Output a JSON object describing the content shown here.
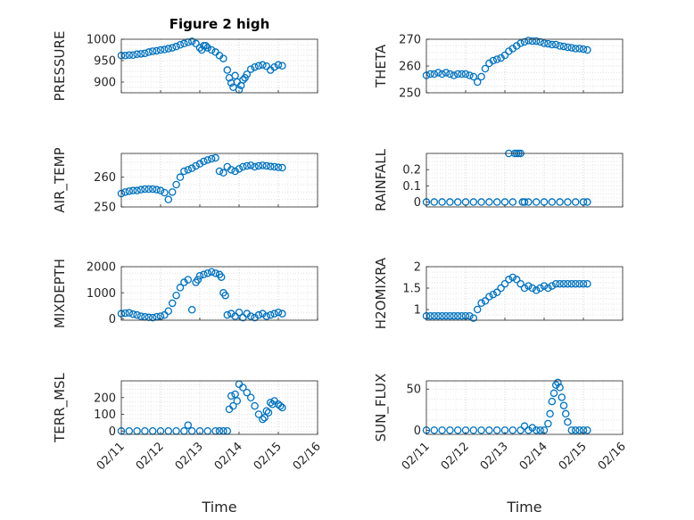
{
  "figure": {
    "title": "Figure 2 high"
  },
  "chart_data": [
    {
      "type": "scatter",
      "ylabel": "PRESSURE",
      "ylim": [
        875,
        1000
      ],
      "yticks": [
        "1000",
        "950",
        "900"
      ],
      "ytick_values": [
        1000,
        950,
        900
      ],
      "xlim": [
        0,
        5
      ],
      "grid": true,
      "x": [
        0.0,
        0.1,
        0.2,
        0.3,
        0.4,
        0.5,
        0.6,
        0.7,
        0.8,
        0.9,
        1.0,
        1.1,
        1.2,
        1.3,
        1.4,
        1.5,
        1.6,
        1.7,
        1.8,
        1.9,
        2.0,
        2.05,
        2.1,
        2.15,
        2.2,
        2.3,
        2.4,
        2.5,
        2.6,
        2.7,
        2.75,
        2.8,
        2.85,
        2.9,
        2.95,
        3.0,
        3.05,
        3.1,
        3.15,
        3.2,
        3.3,
        3.4,
        3.5,
        3.6,
        3.7,
        3.8,
        3.9,
        4.0,
        4.1
      ],
      "y": [
        962,
        962,
        963,
        963,
        965,
        966,
        967,
        970,
        972,
        973,
        975,
        976,
        978,
        980,
        983,
        987,
        990,
        993,
        995,
        990,
        980,
        975,
        985,
        985,
        980,
        975,
        970,
        962,
        955,
        928,
        910,
        898,
        888,
        915,
        900,
        882,
        892,
        905,
        910,
        918,
        930,
        935,
        938,
        940,
        937,
        928,
        935,
        940,
        938
      ],
      "color": "#0072bd"
    },
    {
      "type": "scatter",
      "ylabel": "THETA",
      "ylim": [
        250,
        270
      ],
      "yticks": [
        "270",
        "260",
        "250"
      ],
      "ytick_values": [
        270,
        260,
        250
      ],
      "xlim": [
        0,
        5
      ],
      "grid": true,
      "x": [
        0.0,
        0.1,
        0.2,
        0.3,
        0.4,
        0.5,
        0.6,
        0.7,
        0.8,
        0.9,
        1.0,
        1.1,
        1.2,
        1.3,
        1.4,
        1.5,
        1.6,
        1.7,
        1.8,
        1.9,
        2.0,
        2.1,
        2.2,
        2.3,
        2.4,
        2.5,
        2.6,
        2.7,
        2.8,
        2.9,
        3.0,
        3.1,
        3.2,
        3.3,
        3.4,
        3.5,
        3.6,
        3.7,
        3.8,
        3.9,
        4.0,
        4.1
      ],
      "y": [
        256.5,
        257,
        257,
        257.5,
        257,
        257.5,
        257,
        256.5,
        257,
        257,
        257,
        256.5,
        256,
        254,
        256,
        259,
        261,
        262,
        262.5,
        263,
        264,
        265.5,
        266.5,
        267.5,
        268.5,
        269,
        269.5,
        269.3,
        269.3,
        269,
        268.5,
        268.3,
        268,
        268,
        267.5,
        267.3,
        267,
        266.8,
        266.5,
        266.5,
        266.3,
        266
      ],
      "color": "#0072bd"
    },
    {
      "type": "scatter",
      "ylabel": "AIR_TEMP",
      "ylim": [
        250,
        268
      ],
      "yticks": [
        "260",
        "250"
      ],
      "ytick_values": [
        260,
        250
      ],
      "xlim": [
        0,
        5
      ],
      "grid": true,
      "x": [
        0.0,
        0.1,
        0.2,
        0.3,
        0.4,
        0.5,
        0.6,
        0.7,
        0.8,
        0.9,
        1.0,
        1.1,
        1.2,
        1.3,
        1.4,
        1.5,
        1.6,
        1.7,
        1.8,
        1.9,
        2.0,
        2.1,
        2.2,
        2.3,
        2.4,
        2.5,
        2.6,
        2.7,
        2.8,
        2.9,
        3.0,
        3.1,
        3.2,
        3.3,
        3.4,
        3.5,
        3.6,
        3.7,
        3.8,
        3.9,
        4.0,
        4.1
      ],
      "y": [
        254.5,
        255,
        255.3,
        255.5,
        255.5,
        255.8,
        256,
        256,
        256,
        255.8,
        255.5,
        254.8,
        252.5,
        255,
        257.5,
        260,
        262,
        262.5,
        263,
        263.8,
        264.5,
        265.3,
        265.8,
        266.2,
        266.5,
        262,
        261.5,
        263.5,
        262.5,
        262,
        262.8,
        263.5,
        263.8,
        264,
        263.5,
        263.8,
        264,
        263.8,
        263.6,
        263.5,
        263.3,
        263.2
      ],
      "color": "#0072bd"
    },
    {
      "type": "scatter",
      "ylabel": "RAINFALL",
      "ylim": [
        -0.03,
        0.3
      ],
      "yticks": [
        "0.2",
        "0.1",
        "0"
      ],
      "ytick_values": [
        0.2,
        0.1,
        0
      ],
      "xlim": [
        0,
        5
      ],
      "grid": true,
      "x": [
        0.0,
        0.2,
        0.4,
        0.6,
        0.8,
        1.0,
        1.2,
        1.4,
        1.6,
        1.8,
        2.0,
        2.1,
        2.2,
        2.25,
        2.3,
        2.35,
        2.4,
        2.45,
        2.5,
        2.6,
        2.8,
        3.0,
        3.2,
        3.4,
        3.6,
        3.8,
        4.0,
        4.1
      ],
      "y": [
        0,
        0,
        0,
        0,
        0,
        0,
        0,
        0,
        0,
        0,
        0,
        0.3,
        0,
        0.3,
        0.3,
        0.3,
        0.3,
        0,
        0,
        0,
        0,
        0,
        0,
        0,
        0,
        0,
        0,
        0
      ],
      "color": "#0072bd"
    },
    {
      "type": "scatter",
      "ylabel": "MIXDEPTH",
      "ylim": [
        -50,
        2000
      ],
      "yticks": [
        "2000",
        "1000",
        "0"
      ],
      "ytick_values": [
        2000,
        1000,
        0
      ],
      "xlim": [
        0,
        5
      ],
      "grid": true,
      "x": [
        0.0,
        0.1,
        0.2,
        0.3,
        0.4,
        0.5,
        0.6,
        0.7,
        0.8,
        0.9,
        1.0,
        1.1,
        1.2,
        1.3,
        1.4,
        1.5,
        1.6,
        1.7,
        1.8,
        1.9,
        1.95,
        2.0,
        2.1,
        2.2,
        2.3,
        2.4,
        2.5,
        2.55,
        2.6,
        2.65,
        2.7,
        2.8,
        2.9,
        3.0,
        3.1,
        3.2,
        3.3,
        3.4,
        3.5,
        3.6,
        3.7,
        3.8,
        3.9,
        4.0,
        4.1
      ],
      "y": [
        200,
        220,
        230,
        180,
        150,
        100,
        80,
        60,
        50,
        80,
        100,
        150,
        300,
        600,
        900,
        1200,
        1400,
        1500,
        350,
        1400,
        1500,
        1650,
        1700,
        1750,
        1800,
        1750,
        1700,
        1600,
        1000,
        900,
        150,
        200,
        100,
        250,
        50,
        200,
        100,
        50,
        150,
        200,
        100,
        150,
        200,
        250,
        200
      ],
      "color": "#0072bd"
    },
    {
      "type": "scatter",
      "ylabel": "H2OMIXRA",
      "ylim": [
        0.75,
        2.0
      ],
      "yticks": [
        "2",
        "1.5",
        "1"
      ],
      "ytick_values": [
        2,
        1.5,
        1
      ],
      "xlim": [
        0,
        5
      ],
      "grid": true,
      "x": [
        0.0,
        0.1,
        0.2,
        0.3,
        0.4,
        0.5,
        0.6,
        0.7,
        0.8,
        0.9,
        1.0,
        1.1,
        1.2,
        1.3,
        1.4,
        1.5,
        1.6,
        1.7,
        1.8,
        1.9,
        2.0,
        2.1,
        2.2,
        2.3,
        2.4,
        2.5,
        2.6,
        2.7,
        2.8,
        2.9,
        3.0,
        3.1,
        3.2,
        3.3,
        3.4,
        3.5,
        3.6,
        3.7,
        3.8,
        3.9,
        4.0,
        4.1
      ],
      "y": [
        0.85,
        0.85,
        0.85,
        0.85,
        0.85,
        0.85,
        0.85,
        0.85,
        0.85,
        0.85,
        0.85,
        0.85,
        0.8,
        1.0,
        1.15,
        1.2,
        1.3,
        1.35,
        1.4,
        1.5,
        1.6,
        1.7,
        1.75,
        1.7,
        1.6,
        1.5,
        1.55,
        1.5,
        1.45,
        1.5,
        1.55,
        1.5,
        1.55,
        1.6,
        1.6,
        1.6,
        1.6,
        1.6,
        1.6,
        1.6,
        1.6,
        1.6
      ],
      "color": "#0072bd"
    },
    {
      "type": "scatter",
      "ylabel": "TERR_MSL",
      "ylim": [
        -20,
        300
      ],
      "yticks": [
        "200",
        "100",
        "0"
      ],
      "ytick_values": [
        200,
        100,
        0
      ],
      "xlim": [
        0,
        5
      ],
      "grid": true,
      "x": [
        0.0,
        0.2,
        0.4,
        0.6,
        0.8,
        1.0,
        1.2,
        1.4,
        1.6,
        1.7,
        1.8,
        2.0,
        2.2,
        2.4,
        2.5,
        2.6,
        2.7,
        2.75,
        2.8,
        2.85,
        2.9,
        2.95,
        3.0,
        3.1,
        3.2,
        3.3,
        3.4,
        3.5,
        3.6,
        3.65,
        3.7,
        3.75,
        3.8,
        3.85,
        3.9,
        4.0,
        4.05,
        4.1
      ],
      "y": [
        0,
        0,
        0,
        0,
        0,
        0,
        0,
        0,
        0,
        35,
        0,
        0,
        0,
        0,
        0,
        0,
        0,
        130,
        210,
        150,
        220,
        180,
        280,
        260,
        230,
        200,
        150,
        100,
        70,
        80,
        120,
        110,
        170,
        160,
        180,
        160,
        150,
        140
      ],
      "color": "#0072bd"
    },
    {
      "type": "scatter",
      "ylabel": "SUN_FLUX",
      "ylim": [
        -5,
        60
      ],
      "yticks": [
        "50",
        "0"
      ],
      "ytick_values": [
        50,
        0
      ],
      "xlim": [
        0,
        5
      ],
      "grid": true,
      "x": [
        0.0,
        0.2,
        0.4,
        0.6,
        0.8,
        1.0,
        1.2,
        1.4,
        1.6,
        1.8,
        2.0,
        2.2,
        2.4,
        2.5,
        2.6,
        2.7,
        2.8,
        2.9,
        3.0,
        3.1,
        3.15,
        3.2,
        3.25,
        3.3,
        3.35,
        3.4,
        3.45,
        3.5,
        3.55,
        3.6,
        3.7,
        3.8,
        3.9,
        4.0,
        4.1
      ],
      "y": [
        0,
        0,
        0,
        0,
        0,
        0,
        0,
        0,
        0,
        0,
        0,
        0,
        0,
        5,
        0,
        3,
        0,
        0,
        0,
        8,
        20,
        35,
        45,
        55,
        58,
        52,
        40,
        30,
        20,
        10,
        0,
        0,
        0,
        0,
        0
      ],
      "color": "#0072bd"
    }
  ],
  "x_axis": {
    "ticks": [
      "02/11",
      "02/12",
      "02/13",
      "02/14",
      "02/15",
      "02/16"
    ],
    "label_left": "Time",
    "label_right": "Time"
  }
}
